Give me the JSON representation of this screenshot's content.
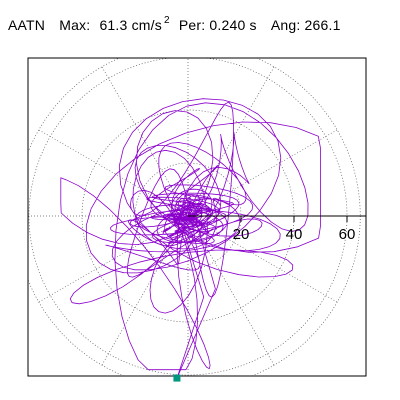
{
  "header": {
    "station": "AATN",
    "max_label": "Max:",
    "max_value": "61.3",
    "max_unit": "cm/s",
    "max_unit_exp": "2",
    "per_label": "Per:",
    "per_value": "0.240 s",
    "ang_label": "Ang:",
    "ang_value": "266.1"
  },
  "chart_data": {
    "type": "polar-hodogram",
    "radial_ticks": [
      20,
      40,
      60
    ],
    "radial_tick_labels": [
      "20",
      "40",
      "60"
    ],
    "r_max": 65,
    "spokes_deg": [
      0,
      30,
      60,
      90,
      120,
      150,
      180,
      210,
      240,
      270,
      300,
      330
    ],
    "grid": true,
    "trace_color": "#8b00cc",
    "marker_color": "#009980",
    "peak": {
      "magnitude": 61.3,
      "angle_deg": 266.1
    },
    "trace_extent_approx": {
      "x_min": -48,
      "x_max": 50,
      "y_min": -60,
      "y_max": 53
    }
  }
}
